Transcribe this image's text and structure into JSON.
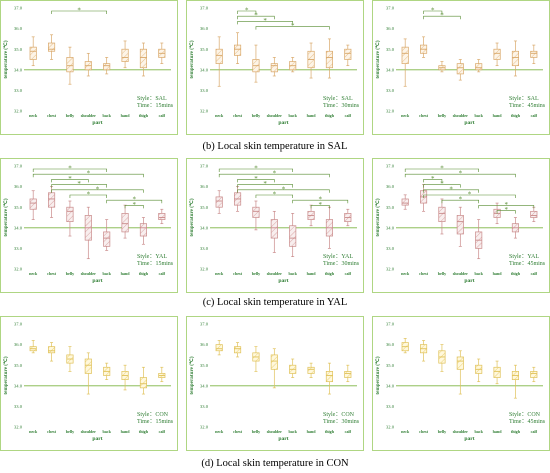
{
  "captions": [
    "(b) Local skin temperature in SAL",
    "(c) Local skin temperature in YAL",
    "(d) Local skin temperature in CON"
  ],
  "panel_colors": {
    "SAL": "#d9a86a",
    "YAL": "#c98a8a",
    "CON": "#e0c25a"
  },
  "chart_data": [
    {
      "type": "box",
      "group": "SAL",
      "style": "SAL",
      "time": "15mins",
      "ylabel": "temperature (℃)",
      "xlabel": "part",
      "categories": [
        "neck",
        "chest",
        "belly",
        "shoulder",
        "back",
        "hand",
        "thigh",
        "calf"
      ],
      "ylim": [
        32,
        37
      ],
      "yticks": [
        "32.0",
        "33.0",
        "34.0",
        "35.0",
        "36.0",
        "37.0"
      ],
      "ref_line": 34.0,
      "boxes": [
        [
          34.2,
          34.5,
          34.9,
          35.1,
          35.6
        ],
        [
          34.5,
          34.9,
          35.0,
          35.3,
          35.7
        ],
        [
          33.3,
          33.9,
          34.2,
          34.6,
          35.1
        ],
        [
          33.7,
          34.0,
          34.2,
          34.4,
          34.8
        ],
        [
          33.8,
          34.0,
          34.2,
          34.3,
          34.6
        ],
        [
          34.1,
          34.4,
          34.6,
          35.0,
          35.4
        ],
        [
          33.7,
          34.1,
          34.6,
          35.0,
          35.3
        ],
        [
          34.3,
          34.6,
          34.8,
          35.0,
          35.3
        ]
      ],
      "sig": [
        [
          "chest",
          "back"
        ]
      ],
      "sig_label": "*",
      "style_label": "Style：",
      "time_label": "Time："
    },
    {
      "type": "box",
      "group": "SAL",
      "style": "SAL",
      "time": "30mins",
      "ylabel": "temperature (℃)",
      "xlabel": "part",
      "categories": [
        "neck",
        "chest",
        "belly",
        "shoulder",
        "back",
        "hand",
        "thigh",
        "calf"
      ],
      "ylim": [
        32,
        37
      ],
      "yticks": [
        "32.0",
        "33.0",
        "34.0",
        "35.0",
        "36.0",
        "37.0"
      ],
      "ref_line": 34.0,
      "boxes": [
        [
          33.2,
          34.3,
          34.7,
          35.0,
          35.6
        ],
        [
          34.3,
          34.7,
          35.0,
          35.2,
          35.8
        ],
        [
          33.4,
          33.9,
          34.2,
          34.5,
          35.2
        ],
        [
          33.7,
          33.9,
          34.2,
          34.3,
          34.6
        ],
        [
          33.9,
          34.0,
          34.2,
          34.4,
          34.6
        ],
        [
          33.6,
          34.1,
          34.5,
          34.9,
          35.3
        ],
        [
          33.6,
          34.1,
          34.6,
          34.9,
          35.5
        ],
        [
          34.2,
          34.5,
          34.8,
          35.0,
          35.2
        ]
      ],
      "sig": [
        [
          "chest",
          "belly"
        ],
        [
          "chest",
          "shoulder"
        ],
        [
          "chest",
          "back"
        ],
        [
          "belly",
          "thigh"
        ]
      ],
      "sig_label": "*",
      "style_label": "Style：",
      "time_label": "Time："
    },
    {
      "type": "box",
      "group": "SAL",
      "style": "SAL",
      "time": "45mins",
      "ylabel": "temperature (℃)",
      "xlabel": "part",
      "categories": [
        "neck",
        "chest",
        "belly",
        "shoulder",
        "back",
        "hand",
        "thigh",
        "calf"
      ],
      "ylim": [
        32,
        37
      ],
      "yticks": [
        "32.0",
        "33.0",
        "34.0",
        "35.0",
        "36.0",
        "37.0"
      ],
      "ref_line": 34.0,
      "boxes": [
        [
          33.2,
          34.3,
          34.8,
          35.1,
          35.5
        ],
        [
          34.6,
          34.8,
          35.0,
          35.2,
          35.6
        ],
        [
          33.9,
          34.0,
          34.1,
          34.2,
          34.4
        ],
        [
          33.5,
          33.8,
          34.1,
          34.3,
          34.5
        ],
        [
          33.9,
          34.0,
          34.1,
          34.3,
          34.5
        ],
        [
          34.2,
          34.5,
          34.8,
          35.0,
          35.3
        ],
        [
          33.7,
          34.2,
          34.6,
          34.9,
          35.4
        ],
        [
          34.3,
          34.6,
          34.8,
          34.9,
          35.2
        ]
      ],
      "sig": [
        [
          "chest",
          "belly"
        ],
        [
          "chest",
          "shoulder"
        ]
      ],
      "sig_label": "*",
      "style_label": "Style：",
      "time_label": "Time："
    },
    {
      "type": "box",
      "group": "YAL",
      "style": "YAL",
      "time": "15mins",
      "ylabel": "temperature (℃)",
      "xlabel": "part",
      "categories": [
        "neck",
        "chest",
        "belly",
        "shoulder",
        "back",
        "hand",
        "thigh",
        "calf"
      ],
      "ylim": [
        32,
        37
      ],
      "yticks": [
        "32.0",
        "33.0",
        "34.0",
        "35.0",
        "36.0",
        "37.0"
      ],
      "ref_line": 34.0,
      "boxes": [
        [
          34.4,
          34.9,
          35.2,
          35.4,
          35.8
        ],
        [
          34.5,
          35.0,
          35.4,
          35.7,
          36.0
        ],
        [
          33.6,
          34.3,
          34.8,
          35.0,
          35.3
        ],
        [
          32.5,
          33.4,
          34.0,
          34.6,
          35.0
        ],
        [
          32.9,
          33.1,
          33.5,
          33.8,
          34.4
        ],
        [
          33.5,
          33.8,
          34.2,
          34.7,
          35.1
        ],
        [
          33.2,
          33.6,
          34.0,
          34.2,
          34.5
        ],
        [
          34.2,
          34.4,
          34.5,
          34.7,
          34.9
        ]
      ],
      "sig": [
        [
          "neck",
          "back"
        ],
        [
          "neck",
          "thigh"
        ],
        [
          "chest",
          "shoulder"
        ],
        [
          "chest",
          "back"
        ],
        [
          "chest",
          "thigh"
        ],
        [
          "belly",
          "back"
        ],
        [
          "back",
          "calf"
        ],
        [
          "hand",
          "thigh"
        ]
      ],
      "sig_label": "*",
      "style_label": "Style：",
      "time_label": "Time："
    },
    {
      "type": "box",
      "group": "YAL",
      "style": "YAL",
      "time": "30mins",
      "ylabel": "temperature (℃)",
      "xlabel": "part",
      "categories": [
        "neck",
        "chest",
        "belly",
        "shoulder",
        "back",
        "hand",
        "thigh",
        "calf"
      ],
      "ylim": [
        32,
        37
      ],
      "yticks": [
        "32.0",
        "33.0",
        "34.0",
        "35.0",
        "36.0",
        "37.0"
      ],
      "ref_line": 34.0,
      "boxes": [
        [
          34.7,
          35.0,
          35.3,
          35.5,
          35.8
        ],
        [
          34.8,
          35.1,
          35.4,
          35.7,
          36.0
        ],
        [
          33.9,
          34.5,
          34.8,
          35.0,
          35.3
        ],
        [
          32.8,
          33.5,
          34.0,
          34.4,
          34.8
        ],
        [
          32.6,
          33.1,
          33.5,
          34.1,
          34.7
        ],
        [
          34.1,
          34.4,
          34.6,
          34.8,
          35.1
        ],
        [
          33.0,
          33.6,
          34.0,
          34.4,
          35.0
        ],
        [
          34.1,
          34.3,
          34.5,
          34.7,
          34.9
        ]
      ],
      "sig": [
        [
          "neck",
          "back"
        ],
        [
          "neck",
          "thigh"
        ],
        [
          "chest",
          "shoulder"
        ],
        [
          "chest",
          "back"
        ],
        [
          "chest",
          "thigh"
        ],
        [
          "belly",
          "back"
        ],
        [
          "back",
          "calf"
        ],
        [
          "hand",
          "thigh"
        ]
      ],
      "sig_label": "*",
      "style_label": "Style：",
      "time_label": "Time："
    },
    {
      "type": "box",
      "group": "YAL",
      "style": "YAL",
      "time": "45mins",
      "ylabel": "temperature (℃)",
      "xlabel": "part",
      "categories": [
        "neck",
        "chest",
        "belly",
        "shoulder",
        "back",
        "hand",
        "thigh",
        "calf"
      ],
      "ylim": [
        32,
        37
      ],
      "yticks": [
        "32.0",
        "33.0",
        "34.0",
        "35.0",
        "36.0",
        "37.0"
      ],
      "ref_line": 34.0,
      "boxes": [
        [
          34.9,
          35.1,
          35.2,
          35.4,
          35.6
        ],
        [
          34.8,
          35.2,
          35.5,
          35.8,
          36.1
        ],
        [
          33.7,
          34.3,
          34.7,
          35.0,
          35.4
        ],
        [
          33.1,
          33.7,
          34.3,
          34.6,
          35.0
        ],
        [
          32.5,
          33.0,
          33.4,
          33.8,
          34.4
        ],
        [
          34.2,
          34.5,
          34.7,
          34.9,
          35.2
        ],
        [
          33.5,
          33.8,
          34.0,
          34.2,
          34.5
        ],
        [
          34.3,
          34.5,
          34.6,
          34.8,
          35.0
        ]
      ],
      "sig": [
        [
          "neck",
          "back"
        ],
        [
          "neck",
          "thigh"
        ],
        [
          "chest",
          "belly"
        ],
        [
          "chest",
          "shoulder"
        ],
        [
          "chest",
          "back"
        ],
        [
          "chest",
          "thigh"
        ],
        [
          "belly",
          "back"
        ],
        [
          "back",
          "calf"
        ],
        [
          "hand",
          "thigh"
        ]
      ],
      "sig_label": "*",
      "style_label": "Style：",
      "time_label": "Time："
    },
    {
      "type": "box",
      "group": "CON",
      "style": "CON",
      "time": "15mins",
      "ylabel": "temperature (℃)",
      "xlabel": "part",
      "categories": [
        "neck",
        "chest",
        "belly",
        "shoulder",
        "back",
        "hand",
        "thigh",
        "calf"
      ],
      "ylim": [
        32,
        37
      ],
      "yticks": [
        "32.0",
        "33.0",
        "34.0",
        "35.0",
        "36.0",
        "37.0"
      ],
      "ref_line": 34.0,
      "boxes": [
        [
          35.6,
          35.7,
          35.8,
          35.9,
          36.2
        ],
        [
          35.2,
          35.6,
          35.7,
          35.9,
          36.1
        ],
        [
          34.7,
          35.1,
          35.3,
          35.5,
          35.9
        ],
        [
          33.6,
          34.6,
          35.0,
          35.3,
          35.6
        ],
        [
          34.3,
          34.5,
          34.7,
          34.9,
          35.1
        ],
        [
          33.8,
          34.3,
          34.5,
          34.7,
          35.0
        ],
        [
          33.6,
          33.9,
          34.1,
          34.4,
          34.9
        ],
        [
          34.2,
          34.4,
          34.5,
          34.6,
          34.9
        ]
      ],
      "sig": [],
      "sig_label": "*",
      "style_label": "Style：",
      "time_label": "Time："
    },
    {
      "type": "box",
      "group": "CON",
      "style": "CON",
      "time": "30mins",
      "ylabel": "temperature (℃)",
      "xlabel": "part",
      "categories": [
        "neck",
        "chest",
        "belly",
        "shoulder",
        "back",
        "hand",
        "thigh",
        "calf"
      ],
      "ylim": [
        32,
        37
      ],
      "yticks": [
        "32.0",
        "33.0",
        "34.0",
        "35.0",
        "36.0",
        "37.0"
      ],
      "ref_line": 34.0,
      "boxes": [
        [
          35.5,
          35.7,
          35.8,
          36.0,
          36.2
        ],
        [
          35.4,
          35.6,
          35.8,
          35.9,
          36.1
        ],
        [
          34.7,
          35.2,
          35.4,
          35.6,
          35.9
        ],
        [
          33.9,
          34.8,
          35.2,
          35.5,
          35.8
        ],
        [
          34.4,
          34.6,
          34.8,
          35.0,
          35.3
        ],
        [
          34.4,
          34.6,
          34.8,
          34.9,
          35.1
        ],
        [
          33.6,
          34.2,
          34.5,
          34.7,
          35.1
        ],
        [
          34.2,
          34.4,
          34.6,
          34.7,
          35.0
        ]
      ],
      "sig": [],
      "sig_label": "*",
      "style_label": "Style：",
      "time_label": "Time："
    },
    {
      "type": "box",
      "group": "CON",
      "style": "CON",
      "time": "45mins",
      "ylabel": "temperature (℃)",
      "xlabel": "part",
      "categories": [
        "neck",
        "chest",
        "belly",
        "shoulder",
        "back",
        "hand",
        "thigh",
        "calf"
      ],
      "ylim": [
        32,
        37
      ],
      "yticks": [
        "32.0",
        "33.0",
        "34.0",
        "35.0",
        "36.0",
        "37.0"
      ],
      "ref_line": 34.0,
      "boxes": [
        [
          35.6,
          35.7,
          35.9,
          36.1,
          36.3
        ],
        [
          35.2,
          35.6,
          35.8,
          36.0,
          36.2
        ],
        [
          34.7,
          35.1,
          35.4,
          35.7,
          36.0
        ],
        [
          33.6,
          34.8,
          35.2,
          35.4,
          35.7
        ],
        [
          34.2,
          34.6,
          34.8,
          35.0,
          35.3
        ],
        [
          34.1,
          34.4,
          34.7,
          34.9,
          35.2
        ],
        [
          33.4,
          34.3,
          34.5,
          34.7,
          35.0
        ],
        [
          34.2,
          34.4,
          34.6,
          34.7,
          34.9
        ]
      ],
      "sig": [],
      "sig_label": "*",
      "style_label": "Style：",
      "time_label": "Time："
    }
  ]
}
